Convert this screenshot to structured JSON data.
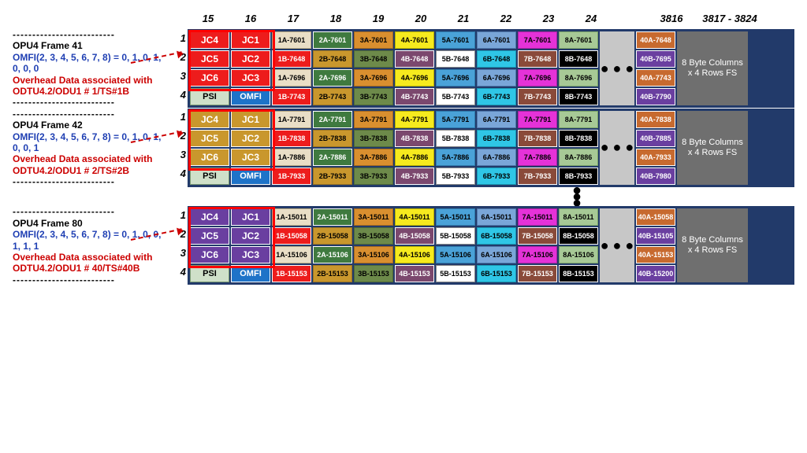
{
  "colors": {
    "jc_frame41": "#ed1c1c",
    "jc_frame42": "#c9972d",
    "jc_frame80": "#6a3fa0",
    "psi_bg": "#cfe0c9",
    "omfi_bg": "#1e73c8",
    "ellipsis_bg": "#c7c7c7",
    "fs_bg": "#6f6f6f",
    "grid_bg": "#223a6a",
    "series": {
      "c17a": {
        "bg": "#e9dec6",
        "fg": "#000",
        "bd": "#b8a982"
      },
      "c17b": {
        "bg": "#ed1c1c",
        "fg": "#fff",
        "bd": "#ffffff"
      },
      "c18a": {
        "bg": "#3f7a3f",
        "fg": "#fff",
        "bd": "#ffffff"
      },
      "c18b": {
        "bg": "#c9972d",
        "fg": "#000",
        "bd": "#9d7523"
      },
      "c19a": {
        "bg": "#d98f2f",
        "fg": "#000",
        "bd": "#a36a20"
      },
      "c19b": {
        "bg": "#6d8a4a",
        "fg": "#000",
        "bd": "#4f6935"
      },
      "c20a": {
        "bg": "#f6ea1e",
        "fg": "#000",
        "bd": "#b8b000"
      },
      "c20b": {
        "bg": "#7b486e",
        "fg": "#fff",
        "bd": "#ffffff"
      },
      "c21a": {
        "bg": "#4aa2d8",
        "fg": "#000",
        "bd": "#2f7cad"
      },
      "c21b": {
        "bg": "#ffffff",
        "fg": "#000",
        "bd": "#888888"
      },
      "c22a": {
        "bg": "#7aa6d8",
        "fg": "#000",
        "bd": "#4f78ab"
      },
      "c22b": {
        "bg": "#2fc6e6",
        "fg": "#000",
        "bd": "#1a98b3"
      },
      "c23a": {
        "bg": "#e532d8",
        "fg": "#000",
        "bd": "#a823a0"
      },
      "c23b": {
        "bg": "#8a4a3a",
        "fg": "#fff",
        "bd": "#ffffff"
      },
      "c24a": {
        "bg": "#a7c996",
        "fg": "#000",
        "bd": "#7aa268"
      },
      "c24b": {
        "bg": "#000000",
        "fg": "#fff",
        "bd": "#ffffff"
      },
      "c3816a": {
        "bg": "#c76a2f",
        "fg": "#fff",
        "bd": "#ffffff"
      },
      "c3816b": {
        "bg": "#6a3fa0",
        "fg": "#fff",
        "bd": "#ffffff"
      }
    }
  },
  "column_headers": [
    "15",
    "16",
    "17",
    "18",
    "19",
    "20",
    "21",
    "22",
    "23",
    "24",
    "",
    "3816",
    "3817 - 3824"
  ],
  "frames": [
    {
      "id": "frame41",
      "title": "OPU4 Frame 41",
      "omfi": "OMFI(2, 3, 4, 5, 6, 7, 8) = 0, 1, 0, 1, 0, 0, 0",
      "assoc": "Overhead Data associated with ODTU4.2/ODU1 # 1/TS#1B",
      "jc_color": "#ed1c1c",
      "rows": [
        {
          "r": "1",
          "c15": "JC4",
          "c16": "JC1",
          "cells": [
            {
              "t": "1A-7601",
              "s": "c17a"
            },
            {
              "t": "2A-7601",
              "s": "c18a"
            },
            {
              "t": "3A-7601",
              "s": "c19a"
            },
            {
              "t": "4A-7601",
              "s": "c20a"
            },
            {
              "t": "5A-7601",
              "s": "c21a"
            },
            {
              "t": "6A-7601",
              "s": "c22a"
            },
            {
              "t": "7A-7601",
              "s": "c23a"
            },
            {
              "t": "8A-7601",
              "s": "c24a"
            }
          ],
          "end": {
            "t": "40A-7648",
            "s": "c3816a"
          }
        },
        {
          "r": "2",
          "c15": "JC5",
          "c16": "JC2",
          "cells": [
            {
              "t": "1B-7648",
              "s": "c17b"
            },
            {
              "t": "2B-7648",
              "s": "c18b"
            },
            {
              "t": "3B-7648",
              "s": "c19b"
            },
            {
              "t": "4B-7648",
              "s": "c20b"
            },
            {
              "t": "5B-7648",
              "s": "c21b"
            },
            {
              "t": "6B-7648",
              "s": "c22b"
            },
            {
              "t": "7B-7648",
              "s": "c23b"
            },
            {
              "t": "8B-7648",
              "s": "c24b"
            }
          ],
          "end": {
            "t": "40B-7695",
            "s": "c3816b"
          }
        },
        {
          "r": "3",
          "c15": "JC6",
          "c16": "JC3",
          "cells": [
            {
              "t": "1A-7696",
              "s": "c17a"
            },
            {
              "t": "2A-7696",
              "s": "c18a"
            },
            {
              "t": "3A-7696",
              "s": "c19a"
            },
            {
              "t": "4A-7696",
              "s": "c20a"
            },
            {
              "t": "5A-7696",
              "s": "c21a"
            },
            {
              "t": "6A-7696",
              "s": "c22a"
            },
            {
              "t": "7A-7696",
              "s": "c23a"
            },
            {
              "t": "8A-7696",
              "s": "c24a"
            }
          ],
          "end": {
            "t": "40A-7743",
            "s": "c3816a"
          }
        },
        {
          "r": "4",
          "c15": "PSI",
          "c16": "OMFI",
          "cells": [
            {
              "t": "1B-7743",
              "s": "c17b"
            },
            {
              "t": "2B-7743",
              "s": "c18b"
            },
            {
              "t": "3B-7743",
              "s": "c19b"
            },
            {
              "t": "4B-7743",
              "s": "c20b"
            },
            {
              "t": "5B-7743",
              "s": "c21b"
            },
            {
              "t": "6B-7743",
              "s": "c22b"
            },
            {
              "t": "7B-7743",
              "s": "c23b"
            },
            {
              "t": "8B-7743",
              "s": "c24b"
            }
          ],
          "end": {
            "t": "40B-7790",
            "s": "c3816b"
          }
        }
      ]
    },
    {
      "id": "frame42",
      "title": "OPU4 Frame 42",
      "omfi": "OMFI(2, 3, 4, 5, 6, 7, 8) = 0, 1, 0, 1, 0, 0, 1",
      "assoc": "Overhead Data associated with ODTU4.2/ODU1 # 2/TS#2B",
      "jc_color": "#c9972d",
      "rows": [
        {
          "r": "1",
          "c15": "JC4",
          "c16": "JC1",
          "cells": [
            {
              "t": "1A-7791",
              "s": "c17a"
            },
            {
              "t": "2A-7791",
              "s": "c18a"
            },
            {
              "t": "3A-7791",
              "s": "c19a"
            },
            {
              "t": "4A-7791",
              "s": "c20a"
            },
            {
              "t": "5A-7791",
              "s": "c21a"
            },
            {
              "t": "6A-7791",
              "s": "c22a"
            },
            {
              "t": "7A-7791",
              "s": "c23a"
            },
            {
              "t": "8A-7791",
              "s": "c24a"
            }
          ],
          "end": {
            "t": "40A-7838",
            "s": "c3816a"
          }
        },
        {
          "r": "2",
          "c15": "JC5",
          "c16": "JC2",
          "cells": [
            {
              "t": "1B-7838",
              "s": "c17b"
            },
            {
              "t": "2B-7838",
              "s": "c18b"
            },
            {
              "t": "3B-7838",
              "s": "c19b"
            },
            {
              "t": "4B-7838",
              "s": "c20b"
            },
            {
              "t": "5B-7838",
              "s": "c21b"
            },
            {
              "t": "6B-7838",
              "s": "c22b"
            },
            {
              "t": "7B-7838",
              "s": "c23b"
            },
            {
              "t": "8B-7838",
              "s": "c24b"
            }
          ],
          "end": {
            "t": "40B-7885",
            "s": "c3816b"
          }
        },
        {
          "r": "3",
          "c15": "JC6",
          "c16": "JC3",
          "cells": [
            {
              "t": "1A-7886",
              "s": "c17a"
            },
            {
              "t": "2A-7886",
              "s": "c18a"
            },
            {
              "t": "3A-7886",
              "s": "c19a"
            },
            {
              "t": "4A-7886",
              "s": "c20a"
            },
            {
              "t": "5A-7886",
              "s": "c21a"
            },
            {
              "t": "6A-7886",
              "s": "c22a"
            },
            {
              "t": "7A-7886",
              "s": "c23a"
            },
            {
              "t": "8A-7886",
              "s": "c24a"
            }
          ],
          "end": {
            "t": "40A-7933",
            "s": "c3816a"
          }
        },
        {
          "r": "4",
          "c15": "PSI",
          "c16": "OMFI",
          "cells": [
            {
              "t": "1B-7933",
              "s": "c17b"
            },
            {
              "t": "2B-7933",
              "s": "c18b"
            },
            {
              "t": "3B-7933",
              "s": "c19b"
            },
            {
              "t": "4B-7933",
              "s": "c20b"
            },
            {
              "t": "5B-7933",
              "s": "c21b"
            },
            {
              "t": "6B-7933",
              "s": "c22b"
            },
            {
              "t": "7B-7933",
              "s": "c23b"
            },
            {
              "t": "8B-7933",
              "s": "c24b"
            }
          ],
          "end": {
            "t": "40B-7980",
            "s": "c3816b"
          }
        }
      ]
    },
    {
      "id": "frame80",
      "title": "OPU4 Frame 80",
      "omfi": "OMFI(2, 3, 4, 5, 6, 7, 8) = 0, 1, 0, 0, 1, 1, 1",
      "assoc": "Overhead Data associated  with ODTU4.2/ODU1 # 40/TS#40B",
      "jc_color": "#6a3fa0",
      "rows": [
        {
          "r": "1",
          "c15": "JC4",
          "c16": "JC1",
          "cells": [
            {
              "t": "1A-15011",
              "s": "c17a"
            },
            {
              "t": "2A-15011",
              "s": "c18a"
            },
            {
              "t": "3A-15011",
              "s": "c19a"
            },
            {
              "t": "4A-15011",
              "s": "c20a"
            },
            {
              "t": "5A-15011",
              "s": "c21a"
            },
            {
              "t": "6A-15011",
              "s": "c22a"
            },
            {
              "t": "7A-15011",
              "s": "c23a"
            },
            {
              "t": "8A-15011",
              "s": "c24a"
            }
          ],
          "end": {
            "t": "40A-15058",
            "s": "c3816a"
          }
        },
        {
          "r": "2",
          "c15": "JC5",
          "c16": "JC2",
          "cells": [
            {
              "t": "1B-15058",
              "s": "c17b"
            },
            {
              "t": "2B-15058",
              "s": "c18b"
            },
            {
              "t": "3B-15058",
              "s": "c19b"
            },
            {
              "t": "4B-15058",
              "s": "c20b"
            },
            {
              "t": "5B-15058",
              "s": "c21b"
            },
            {
              "t": "6B-15058",
              "s": "c22b"
            },
            {
              "t": "7B-15058",
              "s": "c23b"
            },
            {
              "t": "8B-15058",
              "s": "c24b"
            }
          ],
          "end": {
            "t": "40B-15105",
            "s": "c3816b"
          }
        },
        {
          "r": "3",
          "c15": "JC6",
          "c16": "JC3",
          "cells": [
            {
              "t": "1A-15106",
              "s": "c17a"
            },
            {
              "t": "2A-15106",
              "s": "c18a"
            },
            {
              "t": "3A-15106",
              "s": "c19a"
            },
            {
              "t": "4A-15106",
              "s": "c20a"
            },
            {
              "t": "5A-15106",
              "s": "c21a"
            },
            {
              "t": "6A-15106",
              "s": "c22a"
            },
            {
              "t": "7A-15106",
              "s": "c23a"
            },
            {
              "t": "8A-15106",
              "s": "c24a"
            }
          ],
          "end": {
            "t": "40A-15153",
            "s": "c3816a"
          }
        },
        {
          "r": "4",
          "c15": "PSI",
          "c16": "OMFI",
          "cells": [
            {
              "t": "1B-15153",
              "s": "c17b"
            },
            {
              "t": "2B-15153",
              "s": "c18b"
            },
            {
              "t": "3B-15153",
              "s": "c19b"
            },
            {
              "t": "4B-15153",
              "s": "c20b"
            },
            {
              "t": "5B-15153",
              "s": "c21b"
            },
            {
              "t": "6B-15153",
              "s": "c22b"
            },
            {
              "t": "7B-15153",
              "s": "c23b"
            },
            {
              "t": "8B-15153",
              "s": "c24b"
            }
          ],
          "end": {
            "t": "40B-15200",
            "s": "c3816b"
          }
        }
      ]
    }
  ],
  "fs_text": "8 Byte Columns x 4 Rows FS",
  "ellipsis": "● ● ●",
  "vertical_dots": "●\n●\n●",
  "dashes": "--------------------------"
}
